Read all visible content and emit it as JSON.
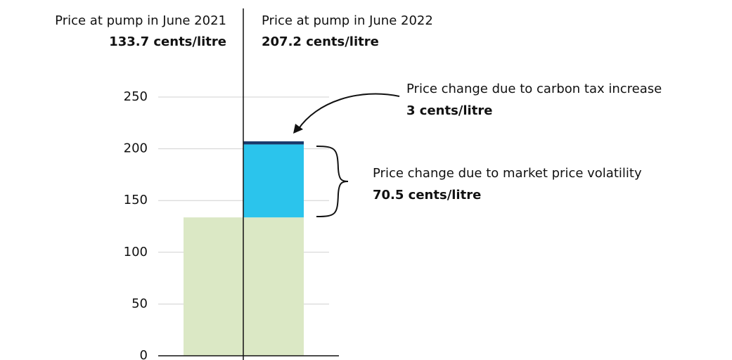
{
  "chart_data": {
    "type": "stacked_bar",
    "categories": [
      "Price at pump in June 2021",
      "Price at pump in June 2022"
    ],
    "totals": [
      133.7,
      207.2
    ],
    "total_labels": [
      "133.7 cents/litre",
      "207.2 cents/litre"
    ],
    "series": [
      {
        "color": "#dbe8c5",
        "values": [
          133.7,
          133.7
        ]
      },
      {
        "name": "Price change due to market price volatility",
        "color": "#2bc4ec",
        "values": [
          null,
          70.5
        ],
        "value_labels": [
          null,
          "70.5 cents/litre"
        ]
      },
      {
        "name": "Price change due to carbon tax increase",
        "color": "#1b3a6b",
        "values": [
          null,
          3
        ],
        "value_labels": [
          null,
          "3 cents/litre"
        ]
      }
    ],
    "ylim": [
      0,
      250
    ],
    "yticks": [
      0,
      50,
      100,
      150,
      200,
      250
    ],
    "grid": true
  }
}
